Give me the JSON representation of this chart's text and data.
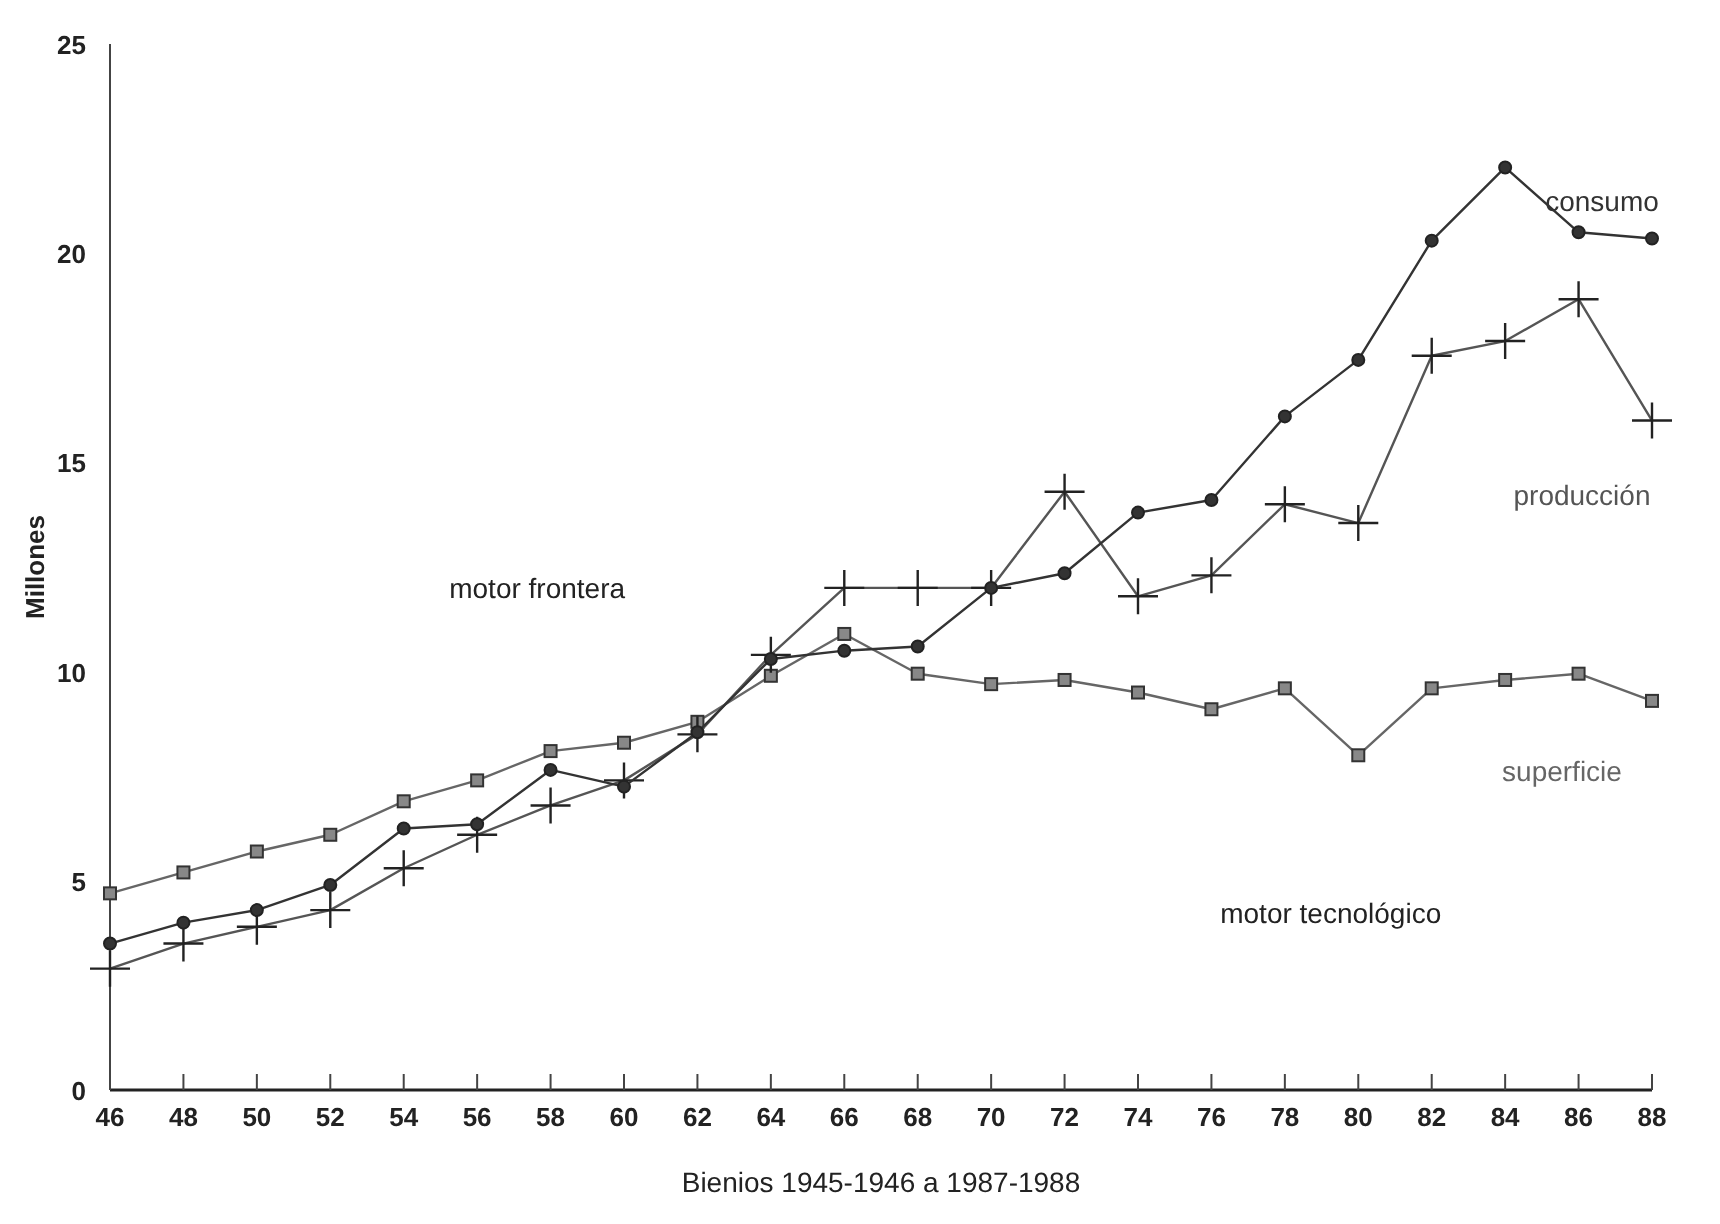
{
  "chart_data": {
    "type": "line",
    "xlabel": "Bienios 1945-1946 a 1987-1988",
    "ylabel": "Millones",
    "x": [
      46,
      48,
      50,
      52,
      54,
      56,
      58,
      60,
      62,
      64,
      66,
      68,
      70,
      72,
      74,
      76,
      78,
      80,
      82,
      84,
      86,
      88
    ],
    "xlim": [
      46,
      88
    ],
    "xticks": [
      46,
      48,
      50,
      52,
      54,
      56,
      58,
      60,
      62,
      64,
      66,
      68,
      70,
      72,
      74,
      76,
      78,
      80,
      82,
      84,
      86,
      88
    ],
    "ylim": [
      0,
      25
    ],
    "yticks": [
      0,
      5,
      10,
      15,
      20,
      25
    ],
    "grid": false,
    "legend": false,
    "series": [
      {
        "name": "consumo",
        "color": "#333333",
        "marker": "circle",
        "values": [
          3.5,
          4.0,
          4.3,
          4.9,
          6.25,
          6.35,
          7.65,
          7.25,
          8.55,
          10.3,
          10.5,
          10.6,
          12.0,
          12.35,
          13.8,
          14.1,
          16.1,
          17.45,
          20.3,
          22.05,
          20.5,
          20.35
        ]
      },
      {
        "name": "producción",
        "color": "#555555",
        "marker": "cross",
        "values": [
          2.9,
          3.5,
          3.9,
          4.3,
          5.3,
          6.1,
          6.8,
          7.4,
          8.5,
          10.4,
          12.0,
          12.0,
          12.0,
          14.3,
          11.8,
          12.3,
          14.0,
          13.55,
          17.55,
          17.9,
          18.9,
          16.0
        ]
      },
      {
        "name": "superficie",
        "color": "#666666",
        "marker": "square",
        "values": [
          4.7,
          5.2,
          5.7,
          6.1,
          6.9,
          7.4,
          8.1,
          8.3,
          8.8,
          9.9,
          10.9,
          9.95,
          9.7,
          9.8,
          9.5,
          9.1,
          9.6,
          8.0,
          9.6,
          9.8,
          9.95,
          9.3
        ]
      }
    ],
    "annotations": [
      "motor frontera",
      "motor tecnológico"
    ]
  }
}
